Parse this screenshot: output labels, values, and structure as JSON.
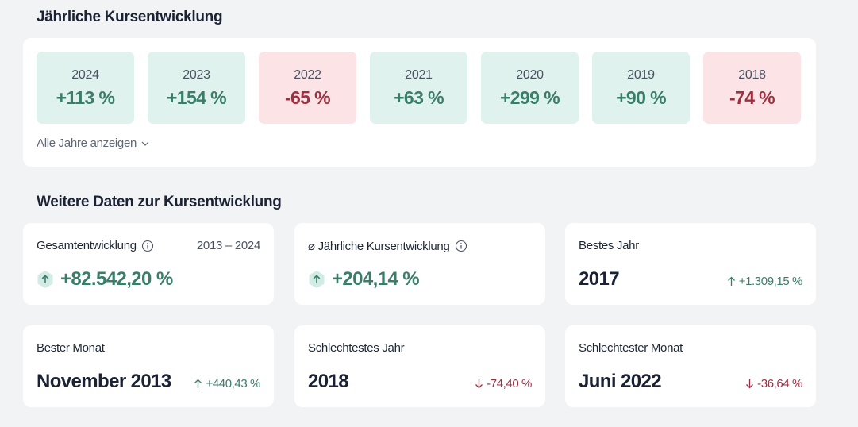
{
  "annual": {
    "title": "Jährliche Kursentwicklung",
    "years": [
      {
        "year": "2024",
        "value": "+113 %",
        "trend": "pos"
      },
      {
        "year": "2023",
        "value": "+154 %",
        "trend": "pos"
      },
      {
        "year": "2022",
        "value": "-65 %",
        "trend": "neg"
      },
      {
        "year": "2021",
        "value": "+63 %",
        "trend": "pos"
      },
      {
        "year": "2020",
        "value": "+299 %",
        "trend": "pos"
      },
      {
        "year": "2019",
        "value": "+90 %",
        "trend": "pos"
      },
      {
        "year": "2018",
        "value": "-74 %",
        "trend": "neg"
      }
    ],
    "show_all_label": "Alle Jahre anzeigen"
  },
  "more": {
    "title": "Weitere Daten zur Kursentwicklung",
    "total": {
      "label": "Gesamtentwicklung",
      "range": "2013 – 2024",
      "value": "+82.542,20 %"
    },
    "avg_annual": {
      "label": "⌀ Jährliche Kursentwicklung",
      "value": "+204,14 %"
    },
    "best_year": {
      "label": "Bestes Jahr",
      "value": "2017",
      "change": "+1.309,15 %"
    },
    "best_month": {
      "label": "Bester Monat",
      "value": "November 2013",
      "change": "+440,43 %"
    },
    "worst_year": {
      "label": "Schlechtestes Jahr",
      "value": "2018",
      "change": "-74,40 %"
    },
    "worst_month": {
      "label": "Schlechtester Monat",
      "value": "Juni 2022",
      "change": "-36,64 %"
    }
  },
  "colors": {
    "positive": "#3a7d69",
    "negative": "#9c3040",
    "positive_bg": "#e0f2ee",
    "negative_bg": "#fbe3e6"
  }
}
